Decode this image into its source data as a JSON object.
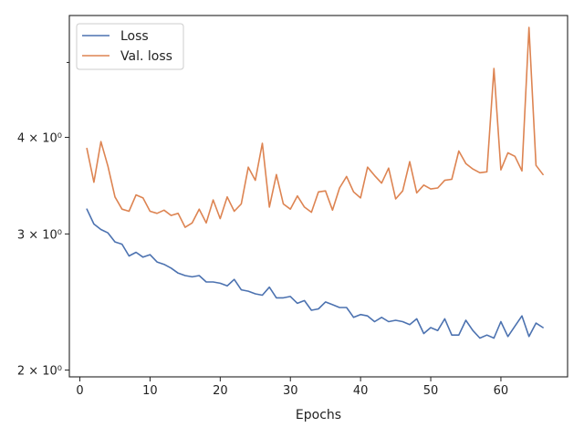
{
  "chart_data": {
    "type": "line",
    "title": "",
    "xlabel": "Epochs",
    "ylabel": "",
    "yscale": "log",
    "xlim": [
      -1.5,
      69.5
    ],
    "ylim": [
      1.96,
      5.75
    ],
    "xticks": [
      0,
      10,
      20,
      30,
      40,
      50,
      60
    ],
    "yticks": [
      {
        "value": 2,
        "label": "2 × 10⁰"
      },
      {
        "value": 3,
        "label": "3 × 10⁰"
      },
      {
        "value": 4,
        "label": "4 × 10⁰"
      }
    ],
    "grid": false,
    "legend": "top-left",
    "colors": {
      "loss": "#4c72b0",
      "val_loss": "#dd8452"
    },
    "series": [
      {
        "name": "Loss",
        "color": "#4c72b0",
        "x": [
          1,
          2,
          3,
          4,
          5,
          6,
          7,
          8,
          9,
          10,
          11,
          12,
          13,
          14,
          15,
          16,
          17,
          18,
          19,
          20,
          21,
          22,
          23,
          24,
          25,
          26,
          27,
          28,
          29,
          30,
          31,
          32,
          33,
          34,
          35,
          36,
          37,
          38,
          39,
          40,
          41,
          42,
          43,
          44,
          45,
          46,
          47,
          48,
          49,
          50,
          51,
          52,
          53,
          54,
          55,
          56,
          57,
          58,
          59,
          60,
          61,
          62,
          63,
          64,
          65,
          66
        ],
        "y": [
          3.23,
          3.09,
          3.04,
          3.01,
          2.93,
          2.91,
          2.81,
          2.84,
          2.8,
          2.82,
          2.76,
          2.74,
          2.71,
          2.67,
          2.65,
          2.64,
          2.65,
          2.6,
          2.6,
          2.59,
          2.57,
          2.62,
          2.54,
          2.53,
          2.51,
          2.5,
          2.56,
          2.48,
          2.48,
          2.49,
          2.44,
          2.46,
          2.39,
          2.4,
          2.45,
          2.43,
          2.41,
          2.41,
          2.34,
          2.36,
          2.35,
          2.31,
          2.34,
          2.31,
          2.32,
          2.31,
          2.29,
          2.33,
          2.23,
          2.27,
          2.25,
          2.33,
          2.22,
          2.22,
          2.32,
          2.25,
          2.2,
          2.22,
          2.2,
          2.31,
          2.21,
          2.28,
          2.35,
          2.21,
          2.3,
          2.27
        ]
      },
      {
        "name": "Val. loss",
        "color": "#dd8452",
        "x": [
          1,
          2,
          3,
          4,
          5,
          6,
          7,
          8,
          9,
          10,
          11,
          12,
          13,
          14,
          15,
          16,
          17,
          18,
          19,
          20,
          21,
          22,
          23,
          24,
          25,
          26,
          27,
          28,
          29,
          30,
          31,
          32,
          33,
          34,
          35,
          36,
          37,
          38,
          39,
          40,
          41,
          42,
          43,
          44,
          45,
          46,
          47,
          48,
          49,
          50,
          51,
          52,
          53,
          54,
          55,
          56,
          57,
          58,
          59,
          60,
          61,
          62,
          63,
          64,
          65,
          66
        ],
        "y": [
          3.87,
          3.5,
          3.95,
          3.67,
          3.35,
          3.23,
          3.21,
          3.37,
          3.34,
          3.21,
          3.19,
          3.22,
          3.17,
          3.19,
          3.06,
          3.1,
          3.23,
          3.1,
          3.32,
          3.14,
          3.35,
          3.21,
          3.28,
          3.66,
          3.52,
          3.93,
          3.25,
          3.58,
          3.28,
          3.23,
          3.36,
          3.25,
          3.2,
          3.4,
          3.41,
          3.22,
          3.44,
          3.56,
          3.4,
          3.34,
          3.66,
          3.57,
          3.49,
          3.65,
          3.33,
          3.41,
          3.72,
          3.39,
          3.47,
          3.43,
          3.44,
          3.52,
          3.53,
          3.84,
          3.7,
          3.64,
          3.6,
          3.61,
          4.91,
          3.63,
          3.82,
          3.78,
          3.62,
          5.55,
          3.68,
          3.58
        ]
      }
    ]
  }
}
